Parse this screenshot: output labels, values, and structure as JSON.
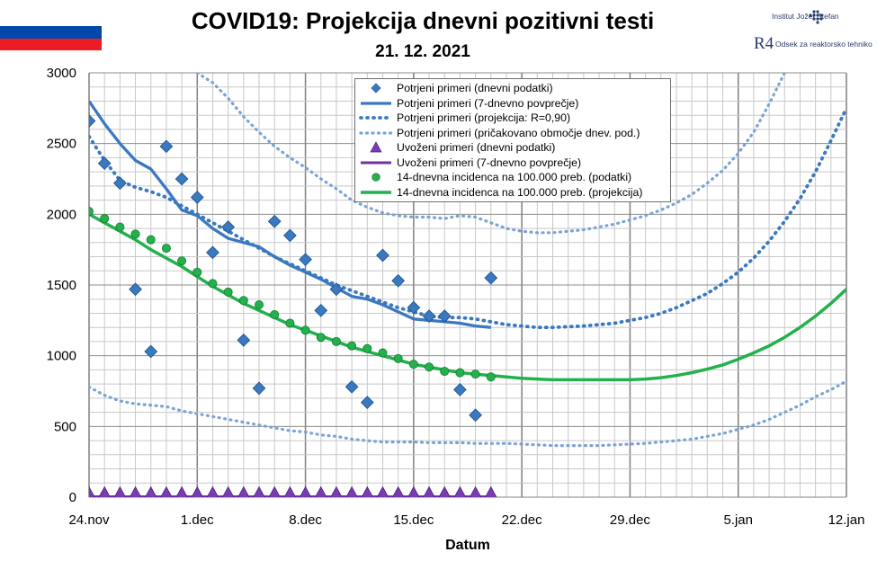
{
  "header": {
    "title": "COVID19: Projekcija dnevni pozitivni testi",
    "date": "21. 12. 2021",
    "logo1_text": "Institut Jožef Stefan",
    "logo2_symbol": "R4",
    "logo2_text": "Odsek za reaktorsko tehniko"
  },
  "colors": {
    "flag": [
      "#ffffff",
      "#0047ab",
      "#ed1c24"
    ],
    "blue": "#3a78c0",
    "dotted_blue": "#3a78c0",
    "band": "#7aa3d6",
    "green": "#22b14c",
    "purple": "#7030a0"
  },
  "chart_data": {
    "type": "line",
    "xlabel": "Datum",
    "ylim": [
      0,
      3000
    ],
    "yticks": [
      0,
      500,
      1000,
      1500,
      2000,
      2500,
      3000
    ],
    "x_range_days": [
      0,
      49
    ],
    "x_ticks": [
      {
        "day": 0,
        "label": "24.nov"
      },
      {
        "day": 7,
        "label": "1.dec"
      },
      {
        "day": 14,
        "label": "8.dec"
      },
      {
        "day": 21,
        "label": "15.dec"
      },
      {
        "day": 28,
        "label": "22.dec"
      },
      {
        "day": 35,
        "label": "29.dec"
      },
      {
        "day": 42,
        "label": "5.jan"
      },
      {
        "day": 49,
        "label": "12.jan"
      }
    ],
    "legend": [
      "Potrjeni primeri (dnevni podatki)",
      "Potrjeni primeri (7-dnevno povprečje)",
      "Potrjeni primeri (projekcija: R=0,90)",
      "Potrjeni primeri (pričakovano območje dnev. pod.)",
      "Uvoženi primeri (dnevni podatki)",
      "Uvoženi primeri (7-dnevno povprečje)",
      "14-dnevna incidenca na 100.000 preb. (podatki)",
      "14-dnevna incidenca na 100.000 preb. (projekcija)"
    ],
    "series": [
      {
        "style": "diamond",
        "x": [
          0,
          1,
          2,
          3,
          4,
          5,
          6,
          7,
          8,
          9,
          10,
          11,
          12,
          13,
          14,
          15,
          16,
          17,
          18,
          19,
          20,
          21,
          22,
          23,
          24,
          25,
          26
        ],
        "y": [
          2660,
          2360,
          2220,
          1470,
          1030,
          2480,
          2250,
          2120,
          1730,
          1910,
          1110,
          770,
          1950,
          1850,
          1680,
          1320,
          1470,
          780,
          670,
          1710,
          1530,
          1340,
          1280,
          1280,
          760,
          580,
          1550
        ]
      },
      {
        "style": "solid-blue",
        "x": [
          0,
          1,
          2,
          3,
          4,
          5,
          6,
          7,
          8,
          9,
          10,
          11,
          12,
          13,
          14,
          15,
          16,
          17,
          18,
          19,
          20,
          21,
          22,
          23,
          24,
          25,
          26
        ],
        "y": [
          2800,
          2640,
          2500,
          2380,
          2320,
          2180,
          2030,
          1990,
          1900,
          1830,
          1800,
          1770,
          1700,
          1640,
          1590,
          1540,
          1480,
          1420,
          1400,
          1360,
          1310,
          1260,
          1250,
          1240,
          1230,
          1210,
          1200
        ]
      },
      {
        "style": "dotted-blue",
        "x": [
          0,
          1,
          2,
          3,
          4,
          5,
          6,
          7,
          8,
          9,
          10,
          11,
          12,
          13,
          14,
          15,
          16,
          17,
          18,
          19,
          20,
          21,
          22,
          23,
          24,
          25,
          26,
          27,
          28,
          29,
          30,
          31,
          32,
          33,
          34,
          35,
          36,
          37,
          38,
          39,
          40,
          41,
          42,
          43,
          44,
          45,
          46,
          47,
          48,
          49
        ],
        "y": [
          2550,
          2380,
          2240,
          2190,
          2160,
          2120,
          2060,
          2000,
          1940,
          1880,
          1820,
          1760,
          1700,
          1650,
          1600,
          1550,
          1500,
          1460,
          1420,
          1380,
          1340,
          1310,
          1280,
          1270,
          1270,
          1260,
          1240,
          1220,
          1210,
          1200,
          1200,
          1205,
          1210,
          1220,
          1230,
          1250,
          1270,
          1300,
          1340,
          1390,
          1440,
          1510,
          1590,
          1690,
          1810,
          1950,
          2110,
          2300,
          2520,
          2750
        ]
      },
      {
        "style": "band-upper",
        "x": [
          7,
          8,
          9,
          10,
          11,
          12,
          13,
          14,
          15,
          16,
          17,
          18,
          19,
          20,
          21,
          22,
          23,
          24,
          25,
          26,
          27,
          28,
          29,
          30,
          31,
          32,
          33,
          34,
          35,
          36,
          37,
          38,
          39,
          40,
          41,
          42,
          43,
          44,
          45
        ],
        "y": [
          3000,
          2930,
          2820,
          2690,
          2580,
          2480,
          2400,
          2330,
          2250,
          2180,
          2100,
          2050,
          2010,
          1990,
          1980,
          1980,
          1970,
          1990,
          1980,
          1940,
          1900,
          1880,
          1870,
          1870,
          1880,
          1890,
          1910,
          1930,
          1960,
          1990,
          2030,
          2080,
          2140,
          2220,
          2310,
          2430,
          2580,
          2780,
          3000
        ]
      },
      {
        "style": "band-lower",
        "x": [
          0,
          1,
          2,
          3,
          4,
          5,
          6,
          7,
          8,
          9,
          10,
          11,
          12,
          13,
          14,
          15,
          16,
          17,
          18,
          19,
          20,
          21,
          22,
          23,
          24,
          25,
          26,
          27,
          28,
          29,
          30,
          31,
          32,
          33,
          34,
          35,
          36,
          37,
          38,
          39,
          40,
          41,
          42,
          43,
          44,
          45,
          46,
          47,
          48,
          49
        ],
        "y": [
          780,
          720,
          680,
          660,
          650,
          640,
          610,
          590,
          570,
          550,
          530,
          510,
          490,
          470,
          460,
          440,
          430,
          410,
          400,
          390,
          390,
          390,
          385,
          385,
          385,
          380,
          380,
          380,
          375,
          370,
          365,
          365,
          365,
          365,
          370,
          375,
          380,
          390,
          400,
          410,
          430,
          450,
          480,
          510,
          550,
          600,
          650,
          710,
          760,
          820
        ]
      },
      {
        "style": "triangle",
        "x": [
          0,
          1,
          2,
          3,
          4,
          5,
          6,
          7,
          8,
          9,
          10,
          11,
          12,
          13,
          14,
          15,
          16,
          17,
          18,
          19,
          20,
          21,
          22,
          23,
          24,
          25,
          26
        ],
        "y": [
          3,
          3,
          3,
          3,
          3,
          3,
          3,
          3,
          3,
          3,
          3,
          3,
          3,
          3,
          3,
          3,
          3,
          3,
          3,
          3,
          3,
          3,
          3,
          3,
          3,
          3,
          3
        ]
      },
      {
        "style": "solid-purple",
        "x": [
          0,
          26
        ],
        "y": [
          3,
          3
        ]
      },
      {
        "style": "green-circle",
        "x": [
          0,
          1,
          2,
          3,
          4,
          5,
          6,
          7,
          8,
          9,
          10,
          11,
          12,
          13,
          14,
          15,
          16,
          17,
          18,
          19,
          20,
          21,
          22,
          23,
          24,
          25,
          26
        ],
        "y": [
          2020,
          1970,
          1910,
          1860,
          1820,
          1760,
          1670,
          1590,
          1510,
          1450,
          1390,
          1360,
          1290,
          1230,
          1180,
          1130,
          1100,
          1070,
          1050,
          1020,
          980,
          940,
          920,
          890,
          880,
          870,
          850
        ]
      },
      {
        "style": "solid-green",
        "x": [
          0,
          1,
          2,
          3,
          4,
          5,
          6,
          7,
          8,
          9,
          10,
          11,
          12,
          13,
          14,
          15,
          16,
          17,
          18,
          19,
          20,
          21,
          22,
          23,
          24,
          25,
          26,
          27,
          28,
          29,
          30,
          31,
          32,
          33,
          34,
          35,
          36,
          37,
          38,
          39,
          40,
          41,
          42,
          43,
          44,
          45,
          46,
          47,
          48,
          49
        ],
        "y": [
          2000,
          1940,
          1880,
          1820,
          1750,
          1690,
          1630,
          1560,
          1490,
          1430,
          1370,
          1320,
          1270,
          1220,
          1180,
          1140,
          1100,
          1060,
          1030,
          1000,
          970,
          940,
          920,
          900,
          880,
          870,
          860,
          850,
          840,
          835,
          830,
          830,
          830,
          830,
          830,
          830,
          835,
          845,
          860,
          880,
          905,
          935,
          975,
          1020,
          1070,
          1130,
          1200,
          1280,
          1370,
          1470
        ]
      }
    ]
  }
}
